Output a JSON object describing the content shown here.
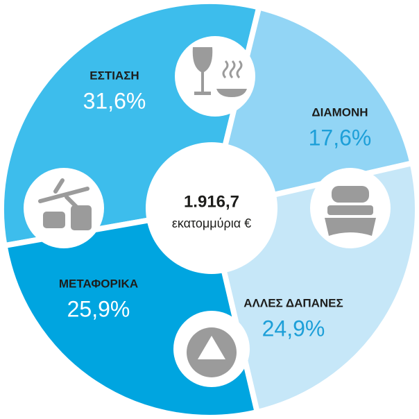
{
  "chart_data": {
    "type": "pie",
    "categories": [
      "ΕΣΤΙΑΣΗ",
      "ΔΙΑΜΟΝΗ",
      "ΑΛΛΕΣ ΔΑΠΑΝΕΣ",
      "ΜΕΤΑΦΟΡΙΚΑ"
    ],
    "values": [
      31.6,
      17.6,
      24.9,
      25.9
    ],
    "value_labels": [
      "31,6%",
      "17,6%",
      "24,9%",
      "25,9%"
    ],
    "colors": [
      "#3dbdec",
      "#92d5f5",
      "#c6e7f8",
      "#00a5e0"
    ],
    "center_title": "1.916,7",
    "center_subtitle": "εκατομμύρια €"
  }
}
